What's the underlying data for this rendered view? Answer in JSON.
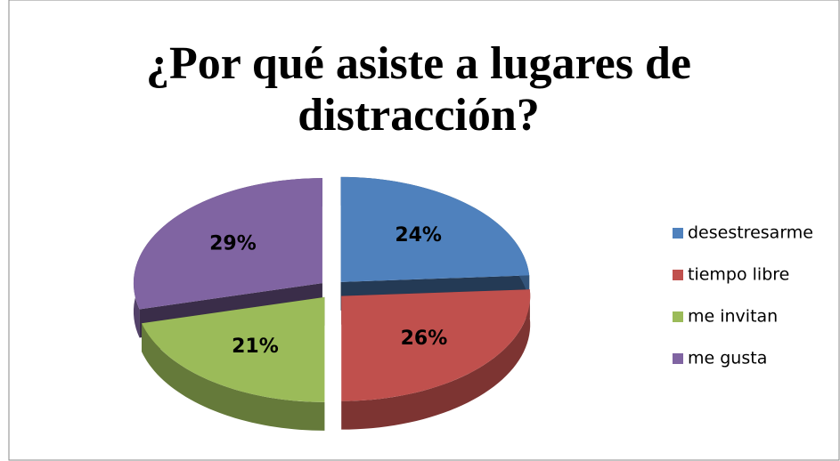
{
  "chart_data": {
    "type": "pie",
    "title": [
      "¿Por qué asiste a lugares de",
      "distracción?"
    ],
    "categories": [
      "desestresarme",
      "tiempo libre",
      "me invitan",
      "me gusta"
    ],
    "values": [
      24,
      26,
      21,
      29
    ],
    "value_labels": [
      "24%",
      "26%",
      "21%",
      "29%"
    ],
    "colors": [
      "#4f81bd",
      "#c0504d",
      "#9bbb59",
      "#8064a2"
    ],
    "legend": "right"
  }
}
